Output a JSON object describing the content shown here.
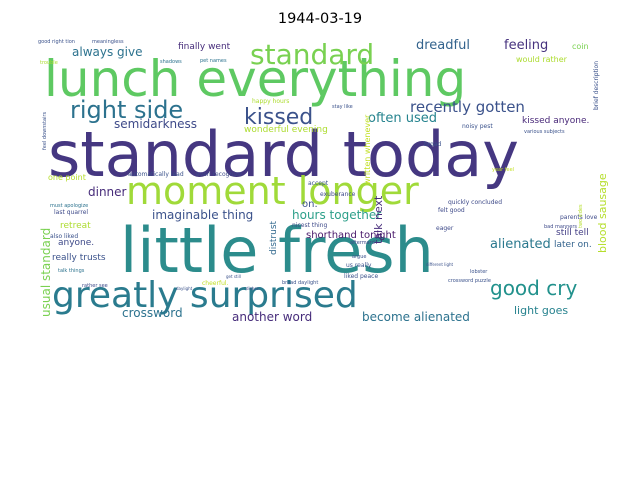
{
  "chart_data": {
    "type": "wordcloud",
    "title": "1944-03-19",
    "palette": [
      "#440154",
      "#472d7b",
      "#3b528b",
      "#2c728e",
      "#21918c",
      "#28ae80",
      "#5ec962",
      "#addc30",
      "#fde725"
    ],
    "words": [
      {
        "text": "standard today",
        "color": "#453781"
      },
      {
        "text": "lunch everything",
        "color": "#5ec962"
      },
      {
        "text": "little fresh",
        "color": "#2c8c8c"
      },
      {
        "text": "moment longer",
        "color": "#a0da39"
      },
      {
        "text": "greatly surprised",
        "color": "#2a7b8e"
      },
      {
        "text": "standard",
        "color": "#79d151"
      },
      {
        "text": "right side",
        "color": "#2c728e"
      },
      {
        "text": "kissed",
        "color": "#3b528b"
      },
      {
        "text": "good cry",
        "color": "#21918c"
      },
      {
        "text": "recently gotten",
        "color": "#3b528b"
      },
      {
        "text": "dreadful",
        "color": "#33638d"
      },
      {
        "text": "feeling",
        "color": "#46327e"
      },
      {
        "text": "always give",
        "color": "#2c728e"
      },
      {
        "text": "semidarkness",
        "color": "#3e4a89"
      },
      {
        "text": "often used",
        "color": "#25838e"
      },
      {
        "text": "alienated",
        "color": "#2a788e"
      },
      {
        "text": "hours together",
        "color": "#2c9f8a"
      },
      {
        "text": "imaginable thing",
        "color": "#3b528b"
      },
      {
        "text": "dinner",
        "color": "#472c7a"
      },
      {
        "text": "crossword",
        "color": "#2c728e"
      },
      {
        "text": "another word",
        "color": "#472d7b"
      },
      {
        "text": "become alienated",
        "color": "#2c728e"
      },
      {
        "text": "light goes",
        "color": "#26828e"
      },
      {
        "text": "blood sausage",
        "color": "#b5de2b"
      },
      {
        "text": "usual standard",
        "color": "#7ad151"
      },
      {
        "text": "talk next",
        "color": "#472d7b"
      },
      {
        "text": "shorthand tonight",
        "color": "#48186a"
      },
      {
        "text": "wonderful evening",
        "color": "#addc30"
      },
      {
        "text": "finally went",
        "color": "#472d7b"
      },
      {
        "text": "kissed anyone.",
        "color": "#482878"
      },
      {
        "text": "would rather",
        "color": "#addc30"
      },
      {
        "text": "coin",
        "color": "#7ad151"
      },
      {
        "text": "on.",
        "color": "#3b528b"
      },
      {
        "text": "anyone.",
        "color": "#3e4a89"
      },
      {
        "text": "retreat",
        "color": "#addc30"
      },
      {
        "text": "really trusts",
        "color": "#3b528b"
      },
      {
        "text": "still tell",
        "color": "#433e85"
      },
      {
        "text": "later on.",
        "color": "#33638d"
      },
      {
        "text": "one point",
        "color": "#b5de2b"
      },
      {
        "text": "distrust",
        "color": "#31688e"
      },
      {
        "text": "written whenever",
        "color": "#c2df23"
      },
      {
        "text": "always give",
        "color": "#2c728e"
      },
      {
        "text": "automatically lead",
        "color": "#3b528b"
      },
      {
        "text": "even recognize",
        "color": "#3e4a89"
      },
      {
        "text": "nicest thing",
        "color": "#3e4a89"
      },
      {
        "text": "parents love",
        "color": "#3e4a89"
      },
      {
        "text": "last quarrel",
        "color": "#3e4a89"
      },
      {
        "text": "also liked",
        "color": "#3b528b"
      },
      {
        "text": "must apologize",
        "color": "#2c728e"
      },
      {
        "text": "talk things",
        "color": "#2c728e"
      },
      {
        "text": "rather see",
        "color": "#3e4a89"
      },
      {
        "text": "exuberance",
        "color": "#3e4a89"
      },
      {
        "text": "aftermard",
        "color": "#3e4a89"
      },
      {
        "text": "argue",
        "color": "#3b528b"
      },
      {
        "text": "us really",
        "color": "#3b528b"
      },
      {
        "text": "liked peace",
        "color": "#3b528b"
      },
      {
        "text": "eager",
        "color": "#3e4a89"
      },
      {
        "text": "accept",
        "color": "#3b528b"
      },
      {
        "text": "felt good",
        "color": "#3e4a89"
      },
      {
        "text": "quickly concluded",
        "color": "#3e4a89"
      },
      {
        "text": "year feel",
        "color": "#c2df23"
      },
      {
        "text": "happy hours",
        "color": "#addc30"
      },
      {
        "text": "pet names",
        "color": "#2c728e"
      },
      {
        "text": "brief description",
        "color": "#3b528b"
      },
      {
        "text": "broad",
        "color": "#3b528b"
      },
      {
        "text": "noisy pest",
        "color": "#3b528b"
      },
      {
        "text": "cheerful.",
        "color": "#c2df23"
      },
      {
        "text": "broad daylight",
        "color": "#3b528b"
      },
      {
        "text": "crossword puzzle",
        "color": "#3b528b"
      },
      {
        "text": "good right tion",
        "color": "#3b528b"
      },
      {
        "text": "meaningless",
        "color": "#3b528b"
      },
      {
        "text": "shadows",
        "color": "#2c728e"
      },
      {
        "text": "feel downstairs",
        "color": "#3b528b"
      },
      {
        "text": "stay like",
        "color": "#3b528b"
      },
      {
        "text": "various subjects",
        "color": "#3b528b"
      },
      {
        "text": "bad manners",
        "color": "#3e4a89"
      },
      {
        "text": "two sides",
        "color": "#b5de2b"
      },
      {
        "text": "different light",
        "color": "#3b528b"
      },
      {
        "text": "lobster",
        "color": "#3b528b"
      },
      {
        "text": "get still",
        "color": "#3b528b"
      },
      {
        "text": "daylight",
        "color": "#3b528b"
      },
      {
        "text": "dishes",
        "color": "#3e4a89"
      },
      {
        "text": "trouble",
        "color": "#addc30"
      }
    ]
  }
}
